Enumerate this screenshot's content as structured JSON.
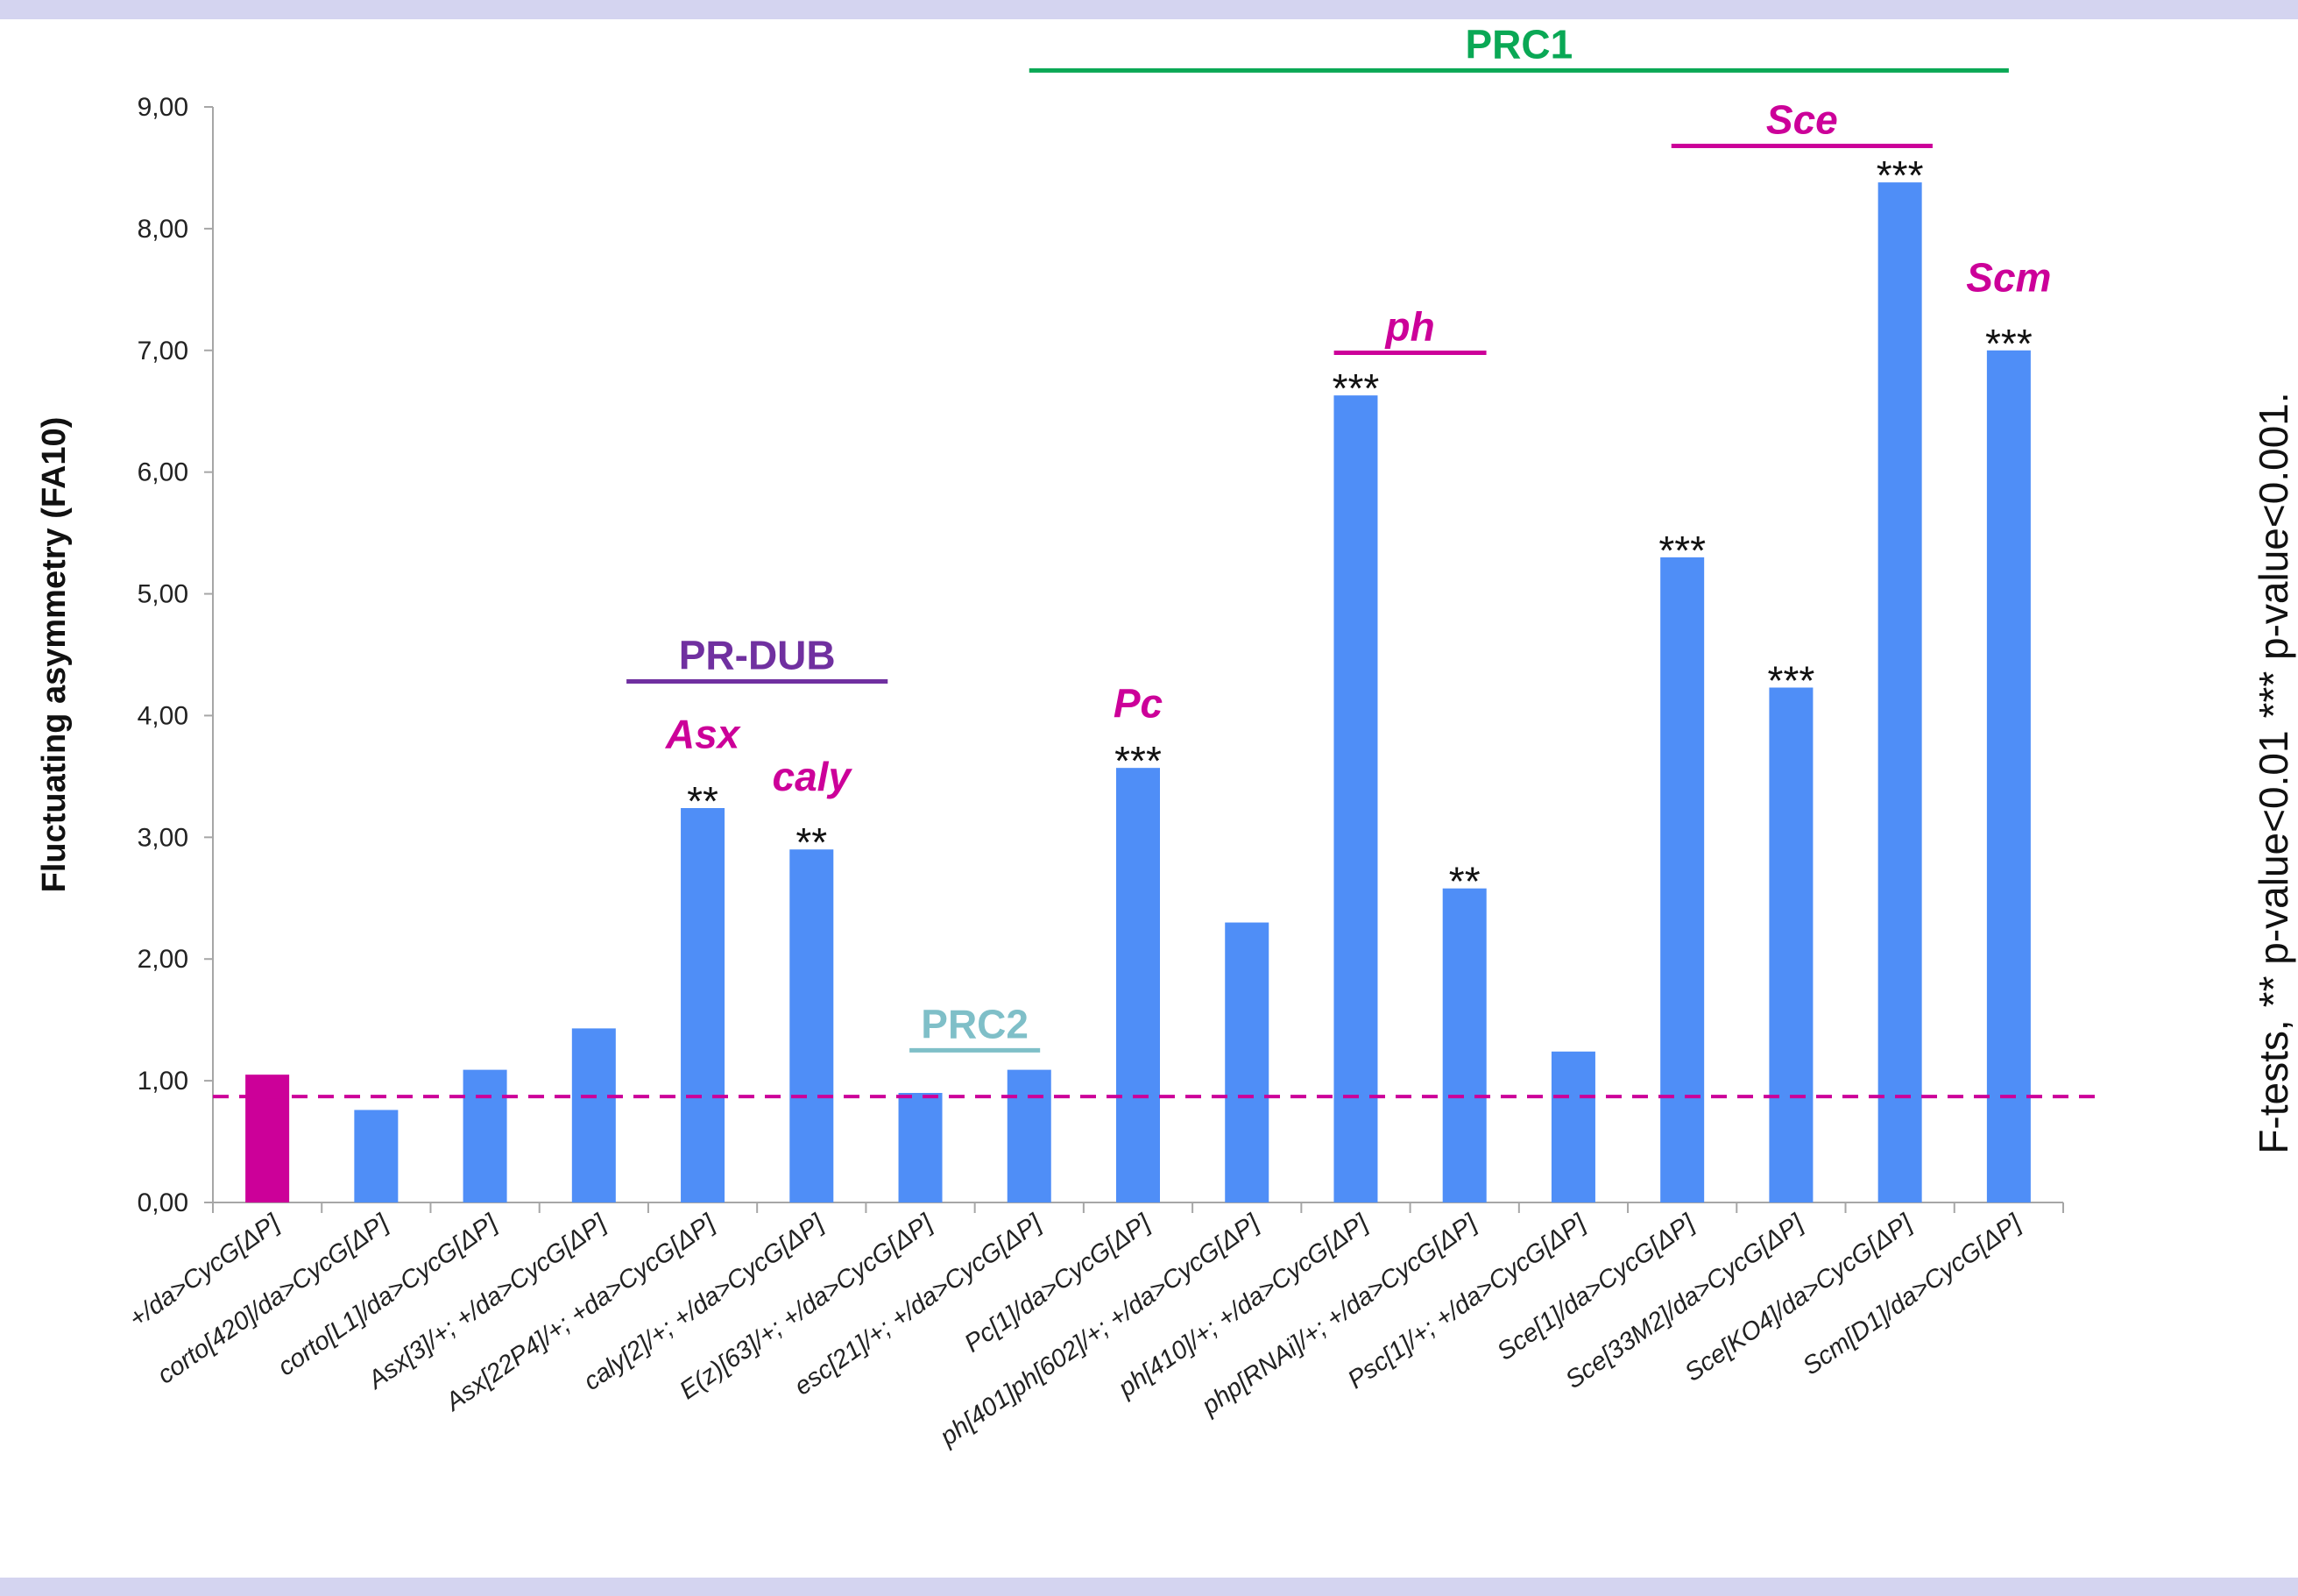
{
  "chart_data": {
    "type": "bar",
    "ylabel": "Fluctuating asymmetry (FA10)",
    "ylim": [
      0,
      9
    ],
    "ytick_labels": [
      "0,00",
      "1,00",
      "2,00",
      "3,00",
      "4,00",
      "5,00",
      "6,00",
      "7,00",
      "8,00",
      "9,00"
    ],
    "categories": [
      "+/da>CycG[ΔP]",
      "corto[420]/da>CycG[ΔP]",
      "corto[L1]/da>CycG[ΔP]",
      "Asx[3]/+; +/da>CycG[ΔP]",
      "Asx[22P4]/+; +da>CycG[ΔP]",
      "caly[2]/+; +/da>CycG[ΔP]",
      "E(z)[63]/+; +/da>CycG[ΔP]",
      "esc[21]/+; +/da>CycG[ΔP]",
      "Pc[1]/da>CycG[ΔP]",
      "ph[401]ph[602]/+; +/da>CycG[ΔP]",
      "ph[410]/+; +/da>CycG[ΔP]",
      "php[RNAi]/+; +/da>CycG[ΔP]",
      "Psc[1]/+; +/da>CycG[ΔP]",
      "Sce[1]/da>CycG[ΔP]",
      "Sce[33M2]/da>CycG[ΔP]",
      "Sce[KO4]/da>CycG[ΔP]",
      "Scm[D1]/da>CycG[ΔP]"
    ],
    "values": [
      1.05,
      0.76,
      1.09,
      1.43,
      3.24,
      2.9,
      0.9,
      1.09,
      3.57,
      2.3,
      6.63,
      2.58,
      1.24,
      5.3,
      4.23,
      8.38,
      7.0
    ],
    "significance": [
      "",
      "",
      "",
      "",
      "**",
      "**",
      "",
      "",
      "***",
      "",
      "***",
      "**",
      "",
      "***",
      "***",
      "***",
      "***"
    ],
    "reference_line": 0.87,
    "colors": {
      "control_bar": "#cc0099",
      "bar": "#4f8ef7",
      "reference_line": "#cc0099",
      "axis": "#a6a6a6",
      "prc1": "#0aa855",
      "pr_dub": "#7030a0",
      "prc2": "#7fbfc8",
      "gene": "#cc0099"
    },
    "groups": [
      {
        "label": "PRC1",
        "from": 7,
        "to": 16,
        "level": 9.3,
        "color": "#0aa855",
        "italic": false
      },
      {
        "label": "PR-DUB",
        "from": 3.3,
        "to": 5.7,
        "level": 4.28,
        "color": "#7030a0",
        "italic": false
      },
      {
        "label": "PRC2",
        "from": 5.9,
        "to": 7.1,
        "level": 1.25,
        "color": "#7fbfc8",
        "italic": false
      },
      {
        "label": "Sce",
        "from": 12.9,
        "to": 15.3,
        "level": 8.68,
        "color": "#cc0099",
        "italic": true
      },
      {
        "label": "ph",
        "from": 9.8,
        "to": 11.2,
        "level": 6.98,
        "color": "#cc0099",
        "italic": true
      }
    ],
    "gene_labels": [
      {
        "label": "Asx",
        "bar": 4,
        "value": 3.85
      },
      {
        "label": "caly",
        "bar": 5,
        "value": 3.5
      },
      {
        "label": "Pc",
        "bar": 8,
        "value": 4.1
      },
      {
        "label": "Scm",
        "bar": 16,
        "value": 7.6
      }
    ]
  },
  "footnote": [
    "F-tests,",
    "** p-value<0.01",
    "*** p-value<0.001."
  ]
}
